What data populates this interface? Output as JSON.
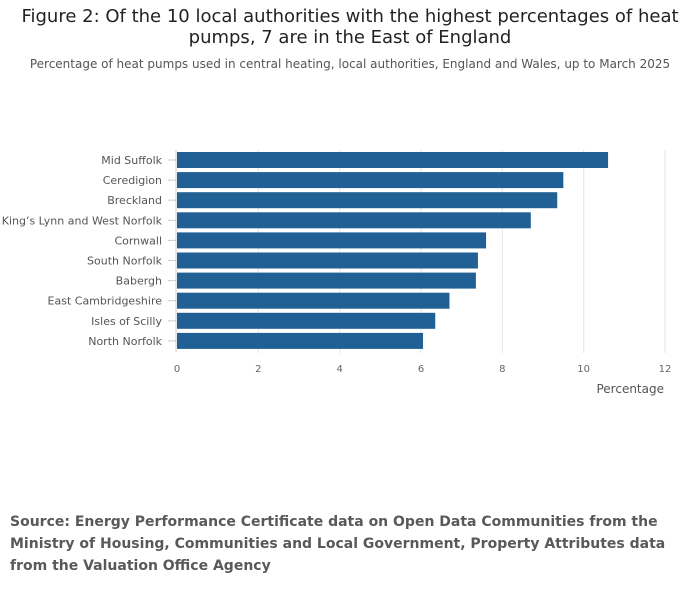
{
  "chart_data": {
    "type": "bar",
    "orientation": "horizontal",
    "title": "Figure 2: Of the 10 local authorities with the highest percentages of heat pumps, 7 are in the East of England",
    "subtitle": "Percentage of heat pumps used in central heating, local authorities, England and Wales, up to March 2025",
    "categories": [
      "Mid Suffolk",
      "Ceredigion",
      "Breckland",
      "King’s Lynn and West Norfolk",
      "Cornwall",
      "South Norfolk",
      "Babergh",
      "East Cambridgeshire",
      "Isles of Scilly",
      "North Norfolk"
    ],
    "values": [
      10.6,
      9.5,
      9.35,
      8.7,
      7.6,
      7.4,
      7.35,
      6.7,
      6.35,
      6.05
    ],
    "xlabel": "Percentage",
    "ylabel": "",
    "xlim": [
      0,
      12
    ],
    "xticks": [
      "0",
      "2",
      "4",
      "6",
      "8",
      "10",
      "12"
    ],
    "grid": true,
    "bar_color": "#206095",
    "source": "Source: Energy Performance Certificate data on Open Data Communities from the Ministry of Housing, Communities and Local Government, Property Attributes data from the Valuation Office Agency"
  }
}
